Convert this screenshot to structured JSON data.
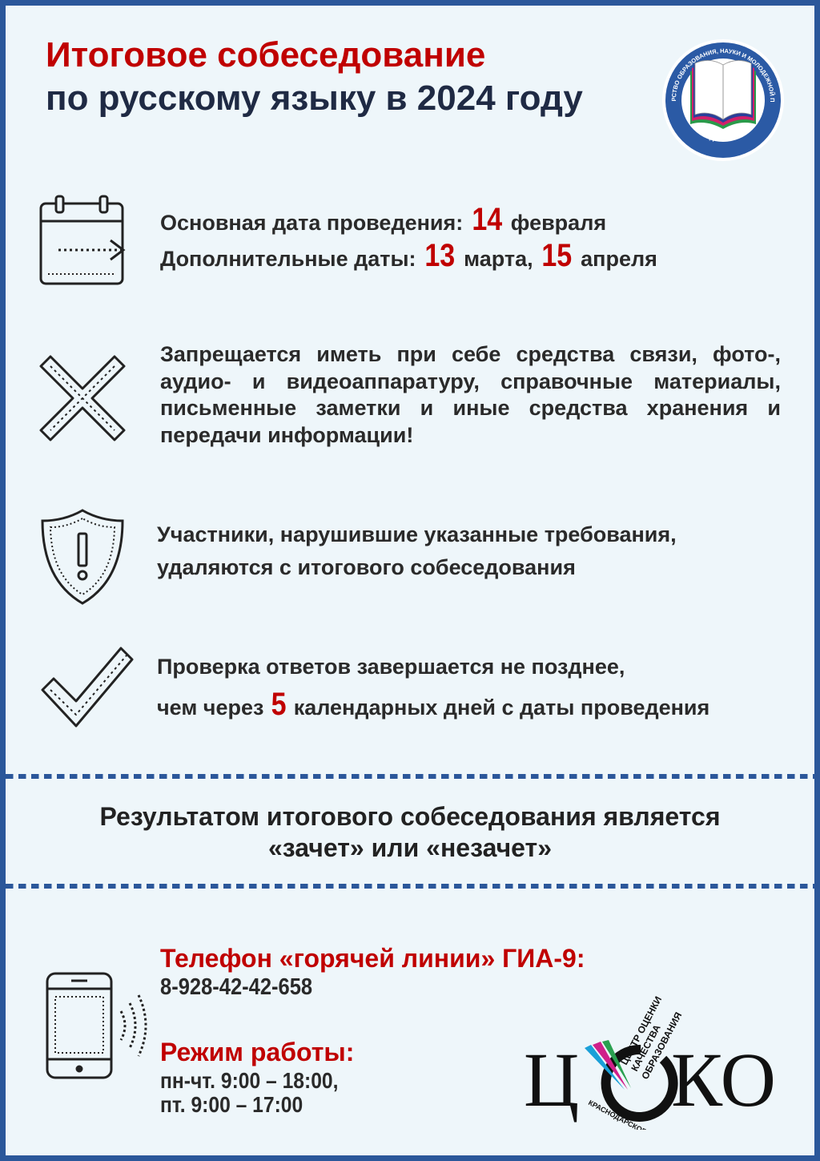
{
  "title": {
    "line1": "Итоговое собеседование",
    "line2": "по русскому языку в 2024 году"
  },
  "logo_ministry": {
    "text_top": "МИНИСТЕРСТВО ОБРАЗОВАНИЯ, НАУКИ И МОЛОДЕЖНОЙ ПОЛИТИКИ",
    "text_bottom": "КРАСНОДАРСКОГО КРАЯ"
  },
  "dates": {
    "main_label": "Основная дата проведения:",
    "main_day": "14",
    "main_month": "февраля",
    "extra_label": "Дополнительные даты:",
    "extra1_day": "13",
    "extra1_month": "марта,",
    "extra2_day": "15",
    "extra2_month": "апреля"
  },
  "prohibition": "Запрещается иметь при себе средства связи, фото-, аудио- и видеоаппаратуру, справочные материалы, письменные заметки и иные средства хранения и передачи информации!",
  "violation": {
    "line1": "Участники, нарушившие указанные требования,",
    "line2": "удаляются с итогового собеседования"
  },
  "check": {
    "line1": "Проверка ответов завершается не позднее,",
    "line2_pre": "чем через",
    "days": "5",
    "line2_post": "календарных дней с даты проведения"
  },
  "result": {
    "line1": "Результатом итогового собеседования является",
    "line2": "«зачет» или «незачет»"
  },
  "hotline": {
    "label": "Телефон «горячей линии» ГИА-9:",
    "phone": "8-928-42-42-658"
  },
  "schedule": {
    "label": "Режим работы:",
    "line1": "пн-чт. 9:00 – 18:00,",
    "line2": "пт. 9:00 – 17:00"
  },
  "logo_coko": {
    "letters": "ЦОКО",
    "tagline1": "ЦЕНТР ОЦЕНКИ",
    "tagline2": "КАЧЕСТВА",
    "tagline3": "ОБРАЗОВАНИЯ",
    "region": "КРАСНОДАРСКОГО КРАЯ"
  },
  "colors": {
    "accent": "#c00000",
    "border": "#2b579a",
    "background": "#eef6fa",
    "text": "#2a2a2a"
  }
}
